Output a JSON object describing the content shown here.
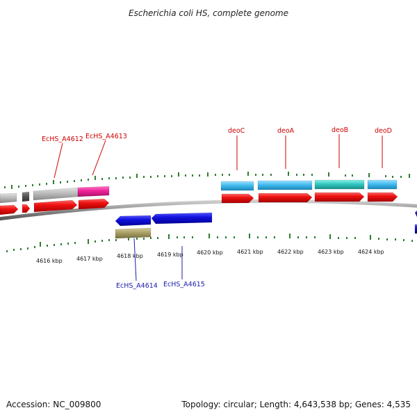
{
  "title": "Escherichia coli HS, complete genome",
  "footer": {
    "accession": "Accession: NC_009800",
    "summary": "Topology: circular; Length: 4,643,538 bp; Genes: 4,535"
  },
  "scale": {
    "labels": [
      "4616 kbp",
      "4617 kbp",
      "4618 kbp",
      "4619 kbp",
      "4620 kbp",
      "4621 kbp",
      "4622 kbp",
      "4623 kbp",
      "4624 kbp"
    ],
    "unit": "kbp"
  },
  "gene_labels": {
    "top": [
      "EcHS_A4612",
      "EcHS_A4613",
      "deoC",
      "deoA",
      "deoB",
      "deoD"
    ],
    "bottom": [
      "EcHS_A4614",
      "EcHS_A4615"
    ]
  },
  "colors": {
    "backbone": "#8c8c8c",
    "cds_forward": "#ee1111",
    "cds_reverse": "#1111dd",
    "feature_cyan": "#44bbee",
    "feature_teal": "#33c8c0",
    "feature_gray": "#bbbbbb",
    "feature_magenta": "#ee2299",
    "feature_olive": "#aaa066",
    "tick": "#2e7d2e",
    "label_red": "#cc0000",
    "label_blue": "#1a1aaa"
  }
}
